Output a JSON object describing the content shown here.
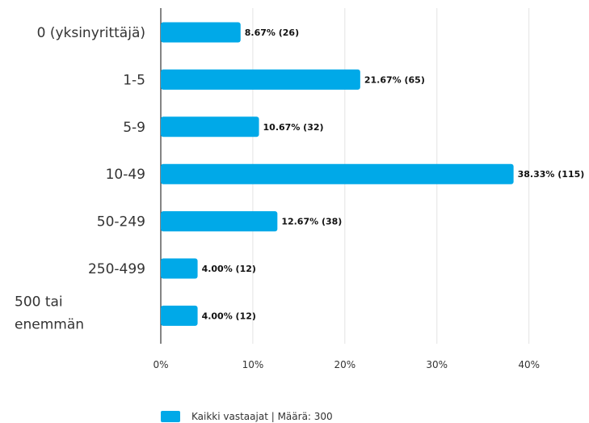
{
  "chart_data": {
    "type": "bar",
    "orientation": "horizontal",
    "categories": [
      [
        "0 (yksinyrittäjä)"
      ],
      [
        "1-5"
      ],
      [
        "5-9"
      ],
      [
        "10-49"
      ],
      [
        "50-249"
      ],
      [
        "250-499"
      ],
      [
        "500 tai",
        "enemmän"
      ]
    ],
    "values": [
      8.67,
      21.67,
      10.67,
      38.33,
      12.67,
      4.0,
      4.0
    ],
    "data_labels": [
      "8.67% (26)",
      "21.67% (65)",
      "10.67% (32)",
      "38.33% (115)",
      "12.67% (38)",
      "4.00% (12)",
      "4.00% (12)"
    ],
    "xlim": [
      0,
      46
    ],
    "x_ticks": [
      0,
      10,
      20,
      30,
      40
    ],
    "x_tick_labels": [
      "0%",
      "10%",
      "20%",
      "30%",
      "40%"
    ],
    "grid": true,
    "bar_color": "#00a9e8",
    "legend": {
      "position": "bottom",
      "label": "Kaikki vastaajat | Määrä: 300",
      "color": "#00a9e8"
    }
  }
}
